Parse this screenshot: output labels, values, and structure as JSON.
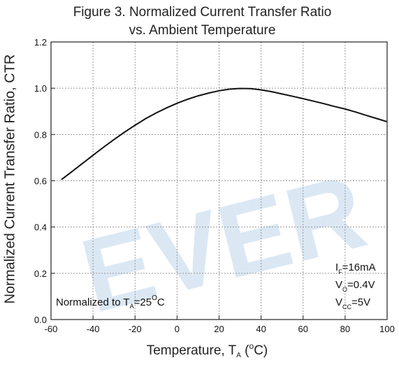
{
  "chart_data": {
    "type": "line",
    "title_line1": "Figure 3. Normalized Current Transfer Ratio",
    "title_line2": "vs. Ambient Temperature",
    "ylabel": "Normalized Current Transfer Ratio, CTR",
    "xlabel_prefix": "Temperature, T",
    "xlabel_sub": "A",
    "xlabel_open": " (",
    "xlabel_deg": "o",
    "xlabel_unit": "C)",
    "xlim": [
      -60,
      100
    ],
    "ylim": [
      0,
      1.2
    ],
    "xticks": [
      "-60",
      "-40",
      "-20",
      "0",
      "20",
      "40",
      "60",
      "80",
      "100"
    ],
    "yticks": [
      "0.0",
      "0.2",
      "0.4",
      "0.6",
      "0.8",
      "1.0",
      "1.2"
    ],
    "grid": true,
    "series": [
      {
        "x": [
          -55,
          -50,
          -45,
          -40,
          -35,
          -30,
          -25,
          -20,
          -15,
          -10,
          -5,
          0,
          5,
          10,
          15,
          20,
          25,
          30,
          35,
          40,
          45,
          50,
          55,
          60,
          65,
          70,
          75,
          80,
          85,
          90,
          95,
          100
        ],
        "y": [
          0.605,
          0.64,
          0.675,
          0.71,
          0.745,
          0.778,
          0.81,
          0.84,
          0.868,
          0.893,
          0.915,
          0.935,
          0.952,
          0.967,
          0.979,
          0.989,
          0.996,
          0.999,
          0.998,
          0.993,
          0.985,
          0.975,
          0.965,
          0.955,
          0.944,
          0.933,
          0.921,
          0.91,
          0.897,
          0.883,
          0.869,
          0.855
        ]
      }
    ],
    "annotations": {
      "normalized_prefix": "Normalized to T",
      "normalized_sub": "A",
      "normalized_eq": "=25",
      "normalized_deg": "O",
      "normalized_unit": "C",
      "cond1_main": "I",
      "cond1_sub": "F",
      "cond1_value": "=16mA",
      "cond2_main": "V",
      "cond2_sub": "O",
      "cond2_value": "=0.4V",
      "cond3_main": "V",
      "cond3_sub": "CC",
      "cond3_value": "=5V"
    },
    "watermark": "EVER",
    "colors": {
      "line": "#111111",
      "grid": "#999999",
      "watermark": "#dbe8f4"
    }
  }
}
